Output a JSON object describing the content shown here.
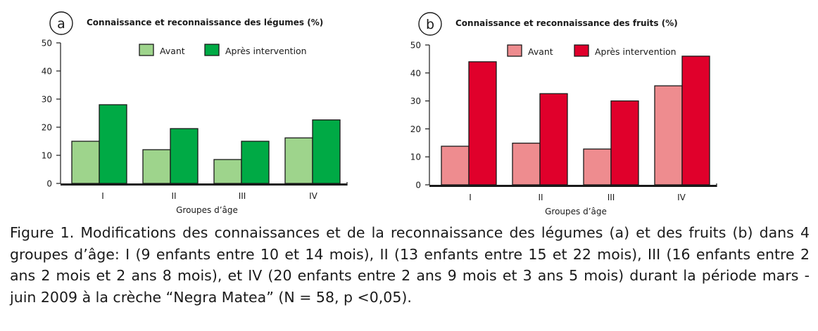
{
  "chart_data": [
    {
      "type": "bar",
      "panel_label": "a",
      "title": "Connaissance et reconnaissance des légumes (%)",
      "xlabel": "Groupes d’âge",
      "ylabel": "",
      "ylim": [
        0,
        50
      ],
      "yticks": [
        0,
        10,
        20,
        30,
        40,
        50
      ],
      "categories": [
        "I",
        "II",
        "III",
        "IV"
      ],
      "legend_position": "top-center",
      "series": [
        {
          "name": "Avant",
          "color": "#9ed48c",
          "values": [
            15,
            12,
            8.5,
            16.2
          ]
        },
        {
          "name": "Après intervention",
          "color": "#00aa45",
          "values": [
            28,
            19.5,
            15,
            22.6
          ]
        }
      ]
    },
    {
      "type": "bar",
      "panel_label": "b",
      "title": "Connaissance et reconnaissance des fruits (%)",
      "xlabel": "Groupes d’âge",
      "ylabel": "",
      "ylim": [
        0,
        50
      ],
      "yticks": [
        0,
        10,
        20,
        30,
        40,
        50
      ],
      "categories": [
        "I",
        "II",
        "III",
        "IV"
      ],
      "legend_position": "top-center",
      "series": [
        {
          "name": "Avant",
          "color": "#ee8c8f",
          "values": [
            13.8,
            14.9,
            12.8,
            35.4
          ]
        },
        {
          "name": "Après intervention",
          "color": "#e0002b",
          "values": [
            44,
            32.6,
            30,
            46
          ]
        }
      ]
    }
  ],
  "caption": {
    "label": "Figure 1.",
    "text": "Modifications des connaissances et de la reconnaissance des légumes (a) et des fruits (b) dans 4 groupes d’âge: I (9 enfants entre 10 et 14 mois), II (13 enfants entre 15 et 22 mois), III (16 enfants entre 2 ans 2 mois et 2 ans 8 mois), et IV (20 enfants entre 2 ans 9 mois et 3 ans 5 mois) durant la période mars - juin 2009 à la crèche “Negra Matea” (N = 58, p <0,05)."
  }
}
